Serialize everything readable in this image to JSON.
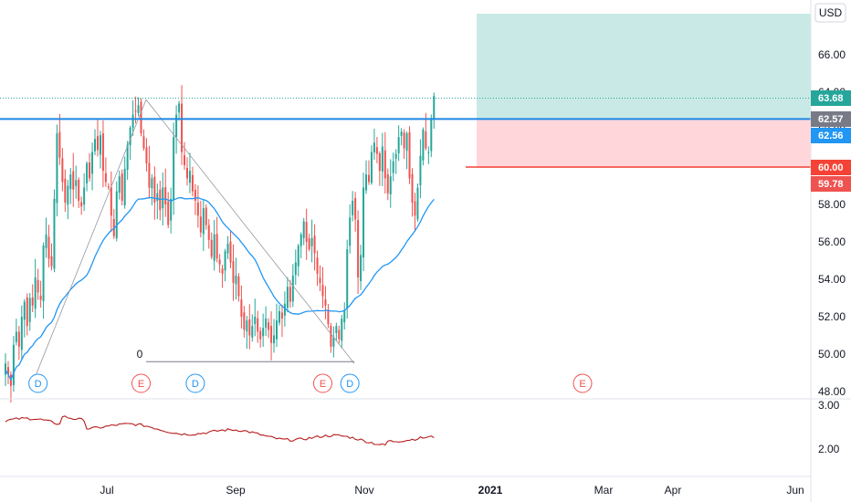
{
  "currency": "USD",
  "colors": {
    "up": "#26a69a",
    "down": "#ef5350",
    "ma": "#2196f3",
    "entry": "#1e88e5",
    "stop": "#f44336",
    "target_zone": "#b2dfdb",
    "stop_zone": "#ffcdd2",
    "indicator": "#b71c1c",
    "grid": "#f0f3fa",
    "event_earnings": "#ef5350",
    "event_dividend": "#2196f3"
  },
  "price_axis": {
    "ticks": [
      "66.00",
      "64.00",
      "62.00",
      "60.00",
      "58.00",
      "56.00",
      "54.00",
      "52.00",
      "50.00",
      "48.00"
    ],
    "tick_values": [
      66,
      64,
      62,
      60,
      58,
      56,
      54,
      52,
      50,
      48
    ],
    "range": [
      47.8,
      68.2
    ]
  },
  "indicator_axis": {
    "ticks": [
      "3.00",
      "2.00"
    ],
    "tick_values": [
      3,
      2
    ],
    "range": [
      1.45,
      3.05
    ]
  },
  "time_axis": {
    "labels": [
      "Jul",
      "Sep",
      "Nov",
      "2021",
      "Mar",
      "Apr",
      "Jun"
    ],
    "bold": [
      false,
      false,
      false,
      true,
      false,
      false,
      false
    ]
  },
  "price_tags": [
    {
      "label": "63.68",
      "value": 63.68,
      "color": "#26a69a"
    },
    {
      "label": "62.57",
      "value": 62.57,
      "color": "#787b86"
    },
    {
      "label": "62.56",
      "value": 62.56,
      "color": "#2196f3"
    },
    {
      "label": "60.00",
      "value": 60.0,
      "color": "#f44336"
    },
    {
      "label": "59.78",
      "value": 59.78,
      "color": "#ef5350"
    }
  ],
  "levels": {
    "entry": 62.57,
    "stop": 60.0,
    "target": 67.8,
    "last": 63.68
  },
  "pattern_label": "0",
  "pattern_base_level": 49.6,
  "events": [
    {
      "type": "D",
      "label": "D",
      "date_index": 12
    },
    {
      "type": "E",
      "label": "E",
      "date_index": 50
    },
    {
      "type": "D",
      "label": "D",
      "date_index": 70
    },
    {
      "type": "E",
      "label": "E",
      "date_index": 117
    },
    {
      "type": "D",
      "label": "D",
      "date_index": 127
    },
    {
      "type": "E",
      "label": "E",
      "date_index": 199
    }
  ],
  "chart_data": {
    "type": "candlestick",
    "title": "",
    "xlabel": "",
    "ylabel": "",
    "ylim": [
      47.8,
      68.2
    ],
    "grid": false,
    "x_ticks": [
      "Jul",
      "Sep",
      "Nov",
      "2021",
      "Mar",
      "Apr",
      "Jun"
    ],
    "y_ticks": [
      66,
      64,
      62,
      60,
      58,
      56,
      54,
      52,
      50,
      48
    ],
    "close": [
      49.5,
      48.9,
      48.3,
      50.5,
      51.2,
      50.4,
      52.0,
      52.8,
      51.5,
      53.0,
      52.6,
      54.1,
      53.3,
      52.9,
      55.8,
      56.4,
      55.1,
      54.7,
      58.3,
      61.8,
      60.5,
      59.2,
      58.1,
      59.0,
      59.6,
      58.8,
      59.3,
      58.2,
      57.9,
      58.9,
      60.2,
      59.4,
      60.8,
      61.5,
      60.9,
      61.7,
      59.8,
      59.2,
      58.9,
      57.4,
      56.3,
      58.7,
      59.5,
      58.2,
      59.9,
      61.2,
      62.1,
      62.8,
      63.0,
      63.3,
      61.8,
      61.0,
      60.2,
      58.9,
      59.4,
      58.1,
      58.6,
      57.7,
      58.9,
      58.0,
      56.9,
      58.3,
      61.6,
      62.8,
      63.4,
      60.8,
      60.1,
      59.4,
      59.8,
      58.7,
      58.2,
      57.4,
      56.5,
      57.8,
      56.9,
      56.1,
      55.2,
      56.4,
      55.1,
      54.8,
      54.3,
      55.5,
      55.9,
      54.9,
      53.8,
      54.2,
      53.1,
      52.0,
      51.3,
      51.8,
      51.0,
      51.5,
      52.0,
      51.2,
      50.8,
      51.4,
      51.9,
      51.3,
      50.6,
      51.0,
      51.8,
      52.3,
      51.9,
      52.7,
      53.6,
      52.8,
      54.2,
      54.9,
      55.8,
      56.4,
      57.1,
      56.0,
      55.6,
      56.2,
      55.4,
      54.3,
      53.8,
      53.1,
      52.6,
      51.6,
      50.4,
      50.9,
      51.5,
      50.8,
      51.9,
      52.3,
      55.6,
      57.3,
      58.2,
      57.2,
      54.1,
      55.3,
      58.9,
      59.6,
      59.2,
      60.8,
      61.3,
      60.7,
      59.8,
      61.1,
      59.4,
      58.6,
      59.5,
      60.3,
      60.7,
      61.6,
      61.9,
      61.0,
      61.8,
      59.4,
      58.1,
      57.4,
      58.9,
      60.6,
      62.0,
      61.0,
      60.8,
      62.6,
      63.8
    ]
  }
}
